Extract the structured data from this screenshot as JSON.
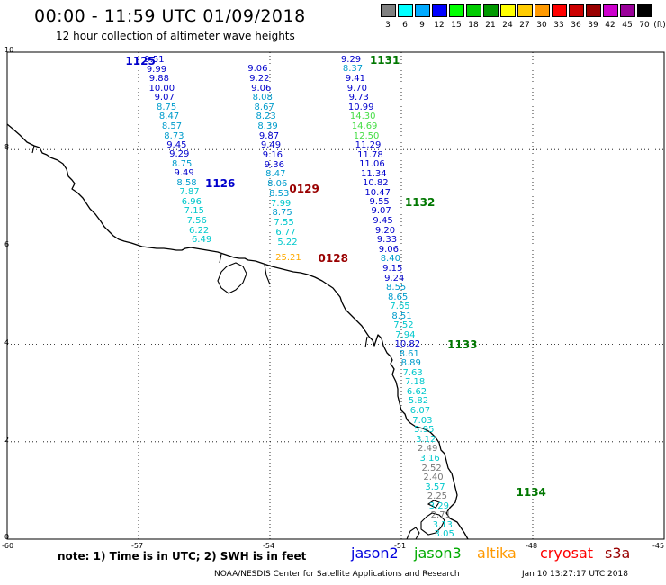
{
  "title": "00:00 - 11:59 UTC 01/09/2018",
  "subtitle": "12 hour collection of altimeter wave heights",
  "legend": {
    "unit": "(ft)",
    "items": [
      {
        "label": "3",
        "color": "#808080"
      },
      {
        "label": "6",
        "color": "#00ffff"
      },
      {
        "label": "9",
        "color": "#00aaff"
      },
      {
        "label": "12",
        "color": "#0000ff"
      },
      {
        "label": "15",
        "color": "#00ff00"
      },
      {
        "label": "18",
        "color": "#00cc00"
      },
      {
        "label": "21",
        "color": "#009900"
      },
      {
        "label": "24",
        "color": "#ffff00"
      },
      {
        "label": "27",
        "color": "#ffcc00"
      },
      {
        "label": "30",
        "color": "#ff9900"
      },
      {
        "label": "33",
        "color": "#ff0000"
      },
      {
        "label": "36",
        "color": "#cc0000"
      },
      {
        "label": "39",
        "color": "#990000"
      },
      {
        "label": "42",
        "color": "#cc00cc"
      },
      {
        "label": "45",
        "color": "#990099"
      },
      {
        "label": "70",
        "color": "#000000"
      }
    ]
  },
  "map": {
    "lon_range": [
      -60,
      -45
    ],
    "lat_range": [
      0,
      10
    ],
    "lon_labels": [
      "-60",
      "-57",
      "-54",
      "-51",
      "-48",
      "-45"
    ],
    "lat_labels": [
      "0",
      "2",
      "4",
      "6",
      "8",
      "10"
    ]
  },
  "tracks": [
    {
      "label": "1125",
      "lat": 9.82,
      "lon": -57.3,
      "color": "#0000cc",
      "values": [
        {
          "v": "9.51",
          "lat": 9.83,
          "lon": -56.64,
          "color": "#0000cc"
        },
        {
          "v": "9.99",
          "lat": 9.63,
          "lon": -56.59,
          "color": "#0000cc"
        },
        {
          "v": "9.88",
          "lat": 9.44,
          "lon": -56.53,
          "color": "#0000cc"
        },
        {
          "v": "10.00",
          "lat": 9.25,
          "lon": -56.47,
          "color": "#0000cc"
        },
        {
          "v": "9.07",
          "lat": 9.05,
          "lon": -56.41,
          "color": "#0000cc"
        },
        {
          "v": "8.75",
          "lat": 8.86,
          "lon": -56.36,
          "color": "#009ccc"
        },
        {
          "v": "8.47",
          "lat": 8.66,
          "lon": -56.3,
          "color": "#009ccc"
        },
        {
          "v": "8.57",
          "lat": 8.47,
          "lon": -56.24,
          "color": "#009ccc"
        },
        {
          "v": "8.73",
          "lat": 8.27,
          "lon": -56.19,
          "color": "#009ccc"
        },
        {
          "v": "9.45",
          "lat": 8.08,
          "lon": -56.13,
          "color": "#0000cc"
        },
        {
          "v": "9.29",
          "lat": 7.89,
          "lon": -56.07,
          "color": "#0000cc"
        },
        {
          "v": "8.75",
          "lat": 7.69,
          "lon": -56.01,
          "color": "#009ccc"
        },
        {
          "v": "9.49",
          "lat": 7.5,
          "lon": -55.96,
          "color": "#0000cc"
        },
        {
          "v": "8.58",
          "lat": 7.3,
          "lon": -55.9,
          "color": "#009ccc"
        },
        {
          "v": "7.87",
          "lat": 7.11,
          "lon": -55.84,
          "color": "#00c8cc"
        },
        {
          "v": "6.96",
          "lat": 6.91,
          "lon": -55.79,
          "color": "#00c8cc"
        },
        {
          "v": "7.15",
          "lat": 6.72,
          "lon": -55.73,
          "color": "#00c8cc"
        },
        {
          "v": "7.56",
          "lat": 6.52,
          "lon": -55.67,
          "color": "#00c8cc"
        },
        {
          "v": "6.22",
          "lat": 6.33,
          "lon": -55.62,
          "color": "#00c8cc"
        },
        {
          "v": "6.49",
          "lat": 6.14,
          "lon": -55.56,
          "color": "#00c8cc"
        }
      ]
    },
    {
      "label": "1126",
      "lat": 7.31,
      "lon": -55.48,
      "color": "#0000cc",
      "values": []
    },
    {
      "label": "0129",
      "lat": 7.19,
      "lon": -53.56,
      "color": "#990000",
      "values": [
        {
          "v": "9.06",
          "lat": 9.65,
          "lon": -54.28,
          "color": "#0000cc"
        },
        {
          "v": "9.22",
          "lat": 9.45,
          "lon": -54.24,
          "color": "#0000cc"
        },
        {
          "v": "9.06",
          "lat": 9.25,
          "lon": -54.2,
          "color": "#0000cc"
        },
        {
          "v": "8.08",
          "lat": 9.06,
          "lon": -54.17,
          "color": "#009ccc"
        },
        {
          "v": "8.67",
          "lat": 8.86,
          "lon": -54.13,
          "color": "#009ccc"
        },
        {
          "v": "8.23",
          "lat": 8.66,
          "lon": -54.09,
          "color": "#009ccc"
        },
        {
          "v": "8.39",
          "lat": 8.46,
          "lon": -54.05,
          "color": "#009ccc"
        },
        {
          "v": "9.87",
          "lat": 8.27,
          "lon": -54.02,
          "color": "#0000cc"
        },
        {
          "v": "9.49",
          "lat": 8.07,
          "lon": -53.98,
          "color": "#0000cc"
        },
        {
          "v": "9.16",
          "lat": 7.87,
          "lon": -53.94,
          "color": "#0000cc"
        },
        {
          "v": "9.36",
          "lat": 7.67,
          "lon": -53.9,
          "color": "#0000cc"
        },
        {
          "v": "8.47",
          "lat": 7.48,
          "lon": -53.87,
          "color": "#009ccc"
        },
        {
          "v": "8.06",
          "lat": 7.28,
          "lon": -53.83,
          "color": "#009ccc"
        },
        {
          "v": "8.53",
          "lat": 7.08,
          "lon": -53.79,
          "color": "#009ccc"
        },
        {
          "v": "7.99",
          "lat": 6.88,
          "lon": -53.75,
          "color": "#00c8cc"
        },
        {
          "v": "8.75",
          "lat": 6.69,
          "lon": -53.72,
          "color": "#009ccc"
        },
        {
          "v": "7.55",
          "lat": 6.49,
          "lon": -53.68,
          "color": "#00c8cc"
        },
        {
          "v": "6.77",
          "lat": 6.29,
          "lon": -53.64,
          "color": "#00c8cc"
        },
        {
          "v": "5.22",
          "lat": 6.09,
          "lon": -53.6,
          "color": "#00c8cc"
        },
        {
          "v": "25.21",
          "lat": 5.76,
          "lon": -53.58,
          "color": "#ffaa00"
        }
      ]
    },
    {
      "label": "0128",
      "lat": 5.76,
      "lon": -52.9,
      "color": "#990000",
      "values": []
    },
    {
      "label": "1131",
      "lat": 9.84,
      "lon": -51.72,
      "color": "#007700",
      "values": [
        {
          "v": "9.29",
          "lat": 9.84,
          "lon": -52.15,
          "color": "#0000cc"
        },
        {
          "v": "8.37",
          "lat": 9.64,
          "lon": -52.11,
          "color": "#009ccc"
        },
        {
          "v": "9.41",
          "lat": 9.44,
          "lon": -52.05,
          "color": "#0000cc"
        },
        {
          "v": "9.70",
          "lat": 9.25,
          "lon": -52.01,
          "color": "#0000cc"
        },
        {
          "v": "9.73",
          "lat": 9.05,
          "lon": -51.97,
          "color": "#0000cc"
        },
        {
          "v": "10.99",
          "lat": 8.86,
          "lon": -51.92,
          "color": "#0000cc"
        },
        {
          "v": "14.30",
          "lat": 8.66,
          "lon": -51.88,
          "color": "#44dd44"
        },
        {
          "v": "14.69",
          "lat": 8.47,
          "lon": -51.84,
          "color": "#44dd44"
        },
        {
          "v": "12.50",
          "lat": 8.27,
          "lon": -51.8,
          "color": "#44dd44"
        },
        {
          "v": "11.29",
          "lat": 8.08,
          "lon": -51.76,
          "color": "#0000cc"
        },
        {
          "v": "11.78",
          "lat": 7.88,
          "lon": -51.71,
          "color": "#0000cc"
        },
        {
          "v": "11.06",
          "lat": 7.69,
          "lon": -51.67,
          "color": "#0000cc"
        },
        {
          "v": "11.34",
          "lat": 7.49,
          "lon": -51.63,
          "color": "#0000cc"
        },
        {
          "v": "10.82",
          "lat": 7.3,
          "lon": -51.59,
          "color": "#0000cc"
        },
        {
          "v": "10.47",
          "lat": 7.1,
          "lon": -51.54,
          "color": "#0000cc"
        },
        {
          "v": "9.55",
          "lat": 6.91,
          "lon": -51.5,
          "color": "#0000cc"
        },
        {
          "v": "9.07",
          "lat": 6.72,
          "lon": -51.46,
          "color": "#0000cc"
        },
        {
          "v": "9.45",
          "lat": 6.52,
          "lon": -51.42,
          "color": "#0000cc"
        },
        {
          "v": "9.20",
          "lat": 6.33,
          "lon": -51.37,
          "color": "#0000cc"
        },
        {
          "v": "9.33",
          "lat": 6.13,
          "lon": -51.33,
          "color": "#0000cc"
        },
        {
          "v": "9.06",
          "lat": 5.94,
          "lon": -51.29,
          "color": "#0000cc"
        },
        {
          "v": "8.40",
          "lat": 5.74,
          "lon": -51.25,
          "color": "#009ccc"
        },
        {
          "v": "9.15",
          "lat": 5.55,
          "lon": -51.2,
          "color": "#0000cc"
        },
        {
          "v": "9.24",
          "lat": 5.35,
          "lon": -51.16,
          "color": "#0000cc"
        },
        {
          "v": "8.55",
          "lat": 5.16,
          "lon": -51.12,
          "color": "#009ccc"
        },
        {
          "v": "8.65",
          "lat": 4.96,
          "lon": -51.08,
          "color": "#009ccc"
        },
        {
          "v": "7.65",
          "lat": 4.77,
          "lon": -51.03,
          "color": "#00c8cc"
        },
        {
          "v": "8.51",
          "lat": 4.57,
          "lon": -50.99,
          "color": "#009ccc"
        },
        {
          "v": "7.52",
          "lat": 4.38,
          "lon": -50.95,
          "color": "#00c8cc"
        },
        {
          "v": "7.94",
          "lat": 4.18,
          "lon": -50.91,
          "color": "#00c8cc"
        },
        {
          "v": "10.82",
          "lat": 3.99,
          "lon": -50.86,
          "color": "#0000cc"
        },
        {
          "v": "8.61",
          "lat": 3.79,
          "lon": -50.82,
          "color": "#009ccc"
        },
        {
          "v": "8.89",
          "lat": 3.6,
          "lon": -50.78,
          "color": "#009ccc"
        },
        {
          "v": "7.63",
          "lat": 3.4,
          "lon": -50.74,
          "color": "#00c8cc"
        },
        {
          "v": "7.18",
          "lat": 3.21,
          "lon": -50.69,
          "color": "#00c8cc"
        },
        {
          "v": "6.62",
          "lat": 3.01,
          "lon": -50.65,
          "color": "#00c8cc"
        },
        {
          "v": "5.82",
          "lat": 2.82,
          "lon": -50.61,
          "color": "#00c8cc"
        },
        {
          "v": "6.07",
          "lat": 2.62,
          "lon": -50.57,
          "color": "#00c8cc"
        },
        {
          "v": "7.03",
          "lat": 2.43,
          "lon": -50.52,
          "color": "#00c8cc"
        },
        {
          "v": "5.95",
          "lat": 2.23,
          "lon": -50.48,
          "color": "#00c8cc"
        },
        {
          "v": "3.12",
          "lat": 2.04,
          "lon": -50.44,
          "color": "#00c8cc"
        },
        {
          "v": "2.49",
          "lat": 1.84,
          "lon": -50.4,
          "color": "#777777"
        },
        {
          "v": "3.16",
          "lat": 1.65,
          "lon": -50.35,
          "color": "#00c8cc"
        },
        {
          "v": "2.52",
          "lat": 1.45,
          "lon": -50.31,
          "color": "#777777"
        },
        {
          "v": "2.40",
          "lat": 1.26,
          "lon": -50.27,
          "color": "#777777"
        },
        {
          "v": "3.57",
          "lat": 1.06,
          "lon": -50.23,
          "color": "#00c8cc"
        },
        {
          "v": "2.25",
          "lat": 0.87,
          "lon": -50.18,
          "color": "#777777"
        },
        {
          "v": "3.29",
          "lat": 0.67,
          "lon": -50.14,
          "color": "#00c8cc"
        },
        {
          "v": "2.71",
          "lat": 0.48,
          "lon": -50.1,
          "color": "#777777"
        },
        {
          "v": "3.13",
          "lat": 0.28,
          "lon": -50.06,
          "color": "#00c8cc"
        },
        {
          "v": "3.05",
          "lat": 0.09,
          "lon": -50.02,
          "color": "#00c8cc"
        }
      ]
    },
    {
      "label": "1132",
      "lat": 6.91,
      "lon": -50.92,
      "color": "#007700",
      "values": []
    },
    {
      "label": "1133",
      "lat": 3.99,
      "lon": -49.95,
      "color": "#007700",
      "values": []
    },
    {
      "label": "1134",
      "lat": 0.96,
      "lon": -48.38,
      "color": "#007700",
      "values": []
    }
  ],
  "note": "note:  1) Time is in UTC;  2) SWH is in feet",
  "missions": [
    {
      "name": "jason2",
      "color": "#0000dd"
    },
    {
      "name": "jason3",
      "color": "#00aa00"
    },
    {
      "name": "altika",
      "color": "#ff9900"
    },
    {
      "name": "cryosat",
      "color": "#ff0000"
    },
    {
      "name": "s3a",
      "color": "#990000"
    }
  ],
  "credit": "NOAA/NESDIS Center for Satellite Applications and Research",
  "timestamp": "Jan 10 13:27:17 UTC 2018"
}
